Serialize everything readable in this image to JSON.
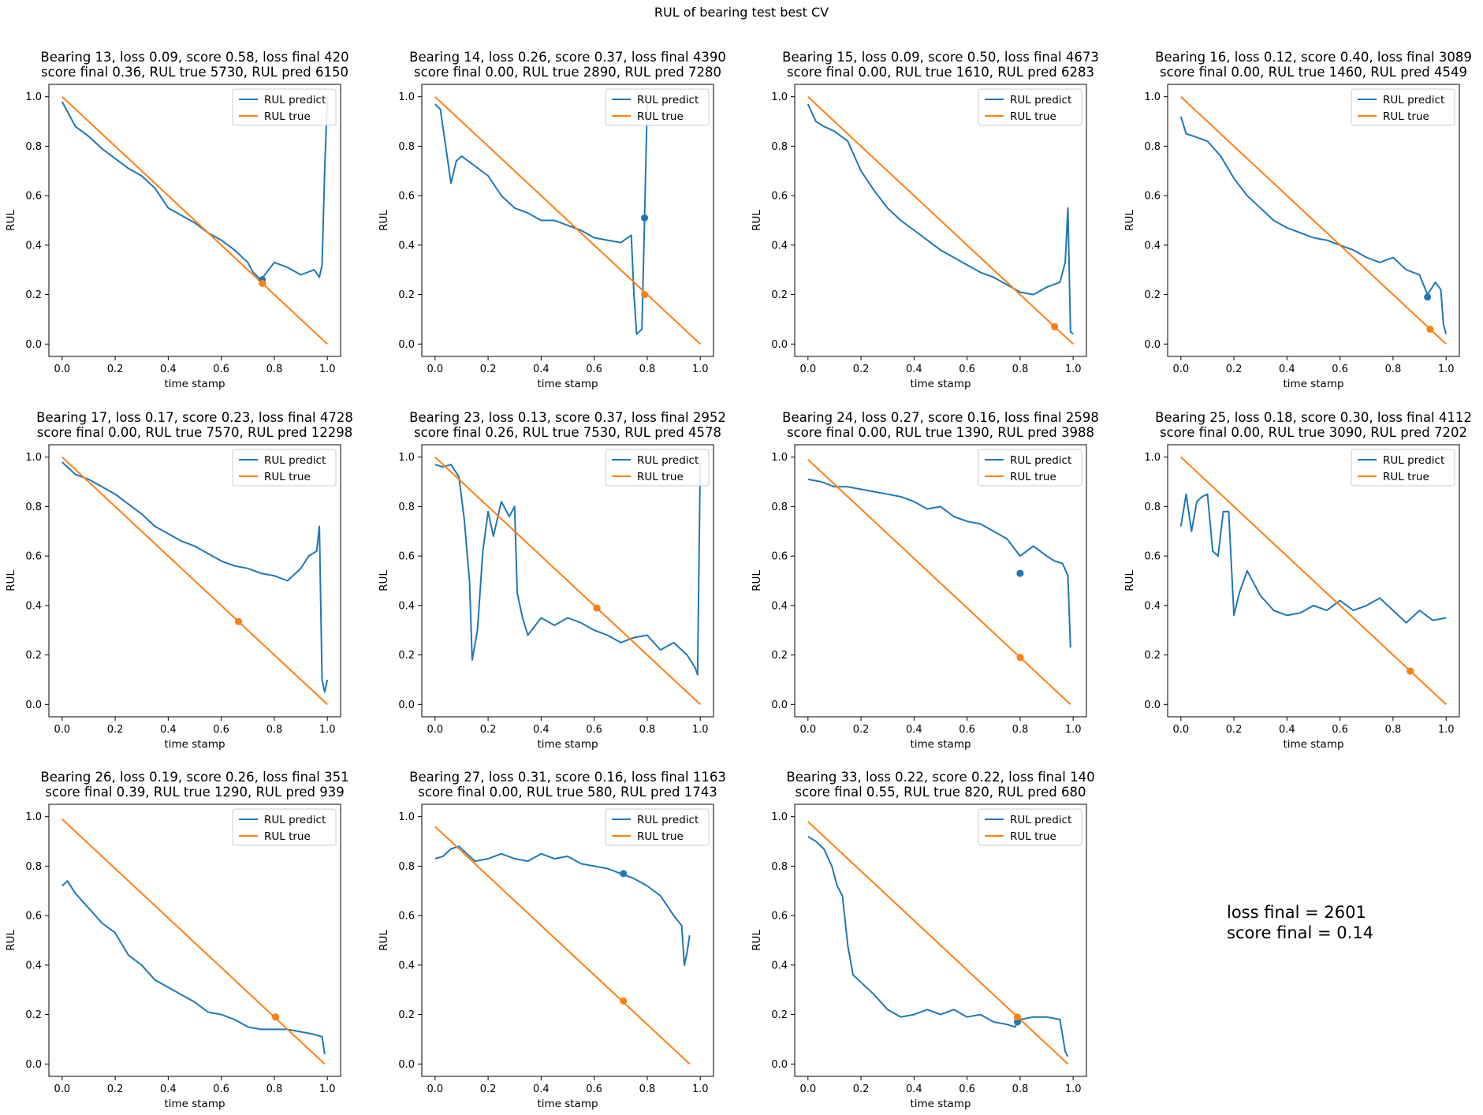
{
  "figure_title": "RUL of bearing test best CV",
  "summary": {
    "loss_final": "loss final = 2601",
    "score_final": "score final = 0.14"
  },
  "colors": {
    "predict": "#1f77b4",
    "true": "#ff7f0e"
  },
  "chart_data": [
    {
      "type": "line",
      "title_line1": "Bearing 13, loss 0.09, score 0.58, loss final 420",
      "title_line2": "score final 0.36, RUL true 5730, RUL pred 6150",
      "xlabel": "time stamp",
      "ylabel": "RUL",
      "xlim": [
        -0.05,
        1.05
      ],
      "ylim": [
        -0.05,
        1.05
      ],
      "legend": "top-right",
      "series": [
        {
          "name": "RUL predict",
          "x": [
            0,
            0.05,
            0.1,
            0.15,
            0.2,
            0.25,
            0.3,
            0.35,
            0.4,
            0.45,
            0.5,
            0.55,
            0.6,
            0.65,
            0.7,
            0.72,
            0.75,
            0.8,
            0.85,
            0.9,
            0.95,
            0.97,
            0.98,
            0.99,
            1.0
          ],
          "y": [
            0.98,
            0.88,
            0.84,
            0.79,
            0.75,
            0.71,
            0.68,
            0.63,
            0.55,
            0.52,
            0.49,
            0.45,
            0.42,
            0.38,
            0.33,
            0.29,
            0.26,
            0.33,
            0.31,
            0.28,
            0.3,
            0.27,
            0.32,
            0.7,
            1.0
          ]
        },
        {
          "name": "RUL true",
          "x": [
            0,
            1
          ],
          "y": [
            1.0,
            0.0
          ]
        }
      ],
      "markers": {
        "predict": [
          0.755,
          0.26
        ],
        "true": [
          0.755,
          0.245
        ]
      }
    },
    {
      "type": "line",
      "title_line1": "Bearing 14, loss 0.26, score 0.37, loss final 4390",
      "title_line2": "score final 0.00, RUL true 2890, RUL pred 7280",
      "xlabel": "time stamp",
      "ylabel": "RUL",
      "xlim": [
        -0.05,
        1.05
      ],
      "ylim": [
        -0.05,
        1.05
      ],
      "legend": "top-right",
      "series": [
        {
          "name": "RUL predict",
          "x": [
            0,
            0.02,
            0.04,
            0.06,
            0.08,
            0.1,
            0.15,
            0.2,
            0.25,
            0.3,
            0.35,
            0.4,
            0.45,
            0.5,
            0.55,
            0.6,
            0.65,
            0.7,
            0.74,
            0.75,
            0.76,
            0.78,
            0.79,
            0.8
          ],
          "y": [
            0.97,
            0.95,
            0.8,
            0.65,
            0.74,
            0.76,
            0.72,
            0.68,
            0.6,
            0.55,
            0.53,
            0.5,
            0.5,
            0.48,
            0.46,
            0.43,
            0.42,
            0.41,
            0.44,
            0.2,
            0.04,
            0.06,
            0.5,
            0.97
          ]
        },
        {
          "name": "RUL true",
          "x": [
            0,
            1
          ],
          "y": [
            1.0,
            0.0
          ]
        }
      ],
      "markers": {
        "predict": [
          0.79,
          0.51
        ],
        "true": [
          0.79,
          0.2
        ]
      }
    },
    {
      "type": "line",
      "title_line1": "Bearing 15, loss 0.09, score 0.50, loss final 4673",
      "title_line2": "score final 0.00, RUL true 1610, RUL pred 6283",
      "xlabel": "time stamp",
      "ylabel": "RUL",
      "xlim": [
        -0.05,
        1.05
      ],
      "ylim": [
        -0.05,
        1.05
      ],
      "legend": "top-right",
      "series": [
        {
          "name": "RUL predict",
          "x": [
            0,
            0.03,
            0.06,
            0.1,
            0.15,
            0.2,
            0.25,
            0.3,
            0.35,
            0.4,
            0.45,
            0.5,
            0.55,
            0.6,
            0.65,
            0.7,
            0.75,
            0.8,
            0.85,
            0.9,
            0.95,
            0.97,
            0.98,
            0.99,
            1.0
          ],
          "y": [
            0.97,
            0.9,
            0.88,
            0.86,
            0.82,
            0.7,
            0.62,
            0.55,
            0.5,
            0.46,
            0.42,
            0.38,
            0.35,
            0.32,
            0.29,
            0.27,
            0.24,
            0.21,
            0.2,
            0.23,
            0.25,
            0.33,
            0.55,
            0.05,
            0.04
          ]
        },
        {
          "name": "RUL true",
          "x": [
            0,
            1
          ],
          "y": [
            1.0,
            0.0
          ]
        }
      ],
      "markers": {
        "predict": [
          0.93,
          0.07
        ],
        "true": [
          0.93,
          0.07
        ]
      }
    },
    {
      "type": "line",
      "title_line1": "Bearing 16, loss 0.12, score 0.40, loss final 3089",
      "title_line2": "score final 0.00, RUL true 1460, RUL pred 4549",
      "xlabel": "time stamp",
      "ylabel": "RUL",
      "xlim": [
        -0.05,
        1.05
      ],
      "ylim": [
        -0.05,
        1.05
      ],
      "legend": "top-right",
      "series": [
        {
          "name": "RUL predict",
          "x": [
            0,
            0.02,
            0.05,
            0.1,
            0.15,
            0.2,
            0.25,
            0.3,
            0.35,
            0.4,
            0.45,
            0.5,
            0.55,
            0.6,
            0.65,
            0.7,
            0.75,
            0.8,
            0.85,
            0.9,
            0.93,
            0.96,
            0.98,
            0.99,
            1.0
          ],
          "y": [
            0.92,
            0.85,
            0.84,
            0.82,
            0.76,
            0.67,
            0.6,
            0.55,
            0.5,
            0.47,
            0.45,
            0.43,
            0.42,
            0.4,
            0.38,
            0.35,
            0.33,
            0.35,
            0.3,
            0.28,
            0.2,
            0.25,
            0.22,
            0.08,
            0.04
          ]
        },
        {
          "name": "RUL true",
          "x": [
            0,
            1
          ],
          "y": [
            1.0,
            0.0
          ]
        }
      ],
      "markers": {
        "predict": [
          0.93,
          0.19
        ],
        "true": [
          0.94,
          0.06
        ]
      }
    },
    {
      "type": "line",
      "title_line1": "Bearing 17, loss 0.17, score 0.23, loss final 4728",
      "title_line2": "score final 0.00, RUL true 7570, RUL pred 12298",
      "xlabel": "time stamp",
      "ylabel": "RUL",
      "xlim": [
        -0.05,
        1.05
      ],
      "ylim": [
        -0.05,
        1.05
      ],
      "legend": "top-right",
      "series": [
        {
          "name": "RUL predict",
          "x": [
            0,
            0.05,
            0.1,
            0.15,
            0.2,
            0.25,
            0.3,
            0.35,
            0.4,
            0.45,
            0.5,
            0.55,
            0.6,
            0.65,
            0.7,
            0.75,
            0.8,
            0.85,
            0.9,
            0.93,
            0.96,
            0.97,
            0.98,
            0.99,
            1.0
          ],
          "y": [
            0.98,
            0.93,
            0.91,
            0.88,
            0.85,
            0.81,
            0.77,
            0.72,
            0.69,
            0.66,
            0.64,
            0.61,
            0.58,
            0.56,
            0.55,
            0.53,
            0.52,
            0.5,
            0.55,
            0.6,
            0.62,
            0.72,
            0.1,
            0.05,
            0.1
          ]
        },
        {
          "name": "RUL true",
          "x": [
            0,
            1
          ],
          "y": [
            1.0,
            0.0
          ]
        }
      ],
      "markers": {
        "predict": [
          0.665,
          0.335
        ],
        "true": [
          0.665,
          0.335
        ]
      }
    },
    {
      "type": "line",
      "title_line1": "Bearing 23, loss 0.13, score 0.37, loss final 2952",
      "title_line2": "score final 0.26, RUL true 7530, RUL pred 4578",
      "xlabel": "time stamp",
      "ylabel": "RUL",
      "xlim": [
        -0.05,
        1.05
      ],
      "ylim": [
        -0.05,
        1.05
      ],
      "legend": "top-right",
      "series": [
        {
          "name": "RUL predict",
          "x": [
            0,
            0.03,
            0.06,
            0.09,
            0.11,
            0.13,
            0.14,
            0.16,
            0.18,
            0.2,
            0.22,
            0.25,
            0.28,
            0.3,
            0.31,
            0.33,
            0.35,
            0.4,
            0.45,
            0.5,
            0.55,
            0.6,
            0.65,
            0.7,
            0.75,
            0.8,
            0.85,
            0.9,
            0.95,
            0.98,
            0.99,
            1.0
          ],
          "y": [
            0.97,
            0.96,
            0.97,
            0.92,
            0.75,
            0.5,
            0.18,
            0.3,
            0.62,
            0.78,
            0.68,
            0.82,
            0.76,
            0.8,
            0.45,
            0.35,
            0.28,
            0.35,
            0.32,
            0.35,
            0.33,
            0.3,
            0.28,
            0.25,
            0.27,
            0.28,
            0.22,
            0.25,
            0.2,
            0.15,
            0.12,
            0.98
          ]
        },
        {
          "name": "RUL true",
          "x": [
            0,
            1
          ],
          "y": [
            1.0,
            0.0
          ]
        }
      ],
      "markers": {
        "predict": [
          0.61,
          0.39
        ],
        "true": [
          0.61,
          0.39
        ]
      }
    },
    {
      "type": "line",
      "title_line1": "Bearing 24, loss 0.27, score 0.16, loss final 2598",
      "title_line2": "score final 0.00, RUL true 1390, RUL pred 3988",
      "xlabel": "time stamp",
      "ylabel": "RUL",
      "xlim": [
        -0.05,
        1.05
      ],
      "ylim": [
        -0.05,
        1.05
      ],
      "legend": "top-right",
      "series": [
        {
          "name": "RUL predict",
          "x": [
            0,
            0.05,
            0.1,
            0.15,
            0.2,
            0.25,
            0.3,
            0.35,
            0.4,
            0.45,
            0.5,
            0.55,
            0.6,
            0.65,
            0.7,
            0.75,
            0.8,
            0.85,
            0.9,
            0.93,
            0.96,
            0.98,
            0.99
          ],
          "y": [
            0.91,
            0.9,
            0.88,
            0.88,
            0.87,
            0.86,
            0.85,
            0.84,
            0.82,
            0.79,
            0.8,
            0.76,
            0.74,
            0.73,
            0.7,
            0.67,
            0.6,
            0.64,
            0.6,
            0.58,
            0.57,
            0.52,
            0.23
          ]
        },
        {
          "name": "RUL true",
          "x": [
            0,
            0.99
          ],
          "y": [
            0.99,
            0.0
          ]
        }
      ],
      "markers": {
        "predict": [
          0.8,
          0.53
        ],
        "true": [
          0.8,
          0.19
        ]
      }
    },
    {
      "type": "line",
      "title_line1": "Bearing 25, loss 0.18, score 0.30, loss final 4112",
      "title_line2": "score final 0.00, RUL true 3090, RUL pred 7202",
      "xlabel": "time stamp",
      "ylabel": "RUL",
      "xlim": [
        -0.05,
        1.05
      ],
      "ylim": [
        -0.05,
        1.05
      ],
      "legend": "top-right",
      "series": [
        {
          "name": "RUL predict",
          "x": [
            0,
            0.02,
            0.04,
            0.06,
            0.08,
            0.1,
            0.12,
            0.14,
            0.16,
            0.18,
            0.2,
            0.22,
            0.25,
            0.3,
            0.35,
            0.4,
            0.45,
            0.5,
            0.55,
            0.6,
            0.65,
            0.7,
            0.75,
            0.8,
            0.85,
            0.9,
            0.95,
            1.0
          ],
          "y": [
            0.72,
            0.85,
            0.7,
            0.82,
            0.84,
            0.85,
            0.62,
            0.6,
            0.78,
            0.78,
            0.36,
            0.45,
            0.54,
            0.44,
            0.38,
            0.36,
            0.37,
            0.4,
            0.38,
            0.42,
            0.38,
            0.4,
            0.43,
            0.38,
            0.33,
            0.38,
            0.34,
            0.35
          ]
        },
        {
          "name": "RUL true",
          "x": [
            0,
            1
          ],
          "y": [
            1.0,
            0.0
          ]
        }
      ],
      "markers": {
        "predict": [
          0.865,
          0.135
        ],
        "true": [
          0.865,
          0.135
        ]
      }
    },
    {
      "type": "line",
      "title_line1": "Bearing 26, loss 0.19, score 0.26, loss final 351",
      "title_line2": "score final 0.39, RUL true 1290, RUL pred 939",
      "xlabel": "time stamp",
      "ylabel": "RUL",
      "xlim": [
        -0.05,
        1.05
      ],
      "ylim": [
        -0.05,
        1.05
      ],
      "legend": "top-right",
      "series": [
        {
          "name": "RUL predict",
          "x": [
            0,
            0.02,
            0.05,
            0.1,
            0.15,
            0.2,
            0.25,
            0.3,
            0.35,
            0.4,
            0.45,
            0.5,
            0.55,
            0.6,
            0.65,
            0.7,
            0.75,
            0.8,
            0.85,
            0.9,
            0.95,
            0.98,
            0.99
          ],
          "y": [
            0.72,
            0.74,
            0.69,
            0.63,
            0.57,
            0.53,
            0.44,
            0.4,
            0.34,
            0.31,
            0.28,
            0.25,
            0.21,
            0.2,
            0.18,
            0.15,
            0.14,
            0.14,
            0.14,
            0.13,
            0.12,
            0.11,
            0.04
          ]
        },
        {
          "name": "RUL true",
          "x": [
            0,
            0.99
          ],
          "y": [
            0.99,
            0.0
          ]
        }
      ],
      "markers": {
        "predict": [
          0.805,
          0.19
        ],
        "true": [
          0.805,
          0.19
        ]
      }
    },
    {
      "type": "line",
      "title_line1": "Bearing 27, loss 0.31, score 0.16, loss final 1163",
      "title_line2": "score final 0.00, RUL true 580, RUL pred 1743",
      "xlabel": "time stamp",
      "ylabel": "RUL",
      "xlim": [
        -0.05,
        1.05
      ],
      "ylim": [
        -0.05,
        1.05
      ],
      "legend": "top-right",
      "series": [
        {
          "name": "RUL predict",
          "x": [
            0,
            0.03,
            0.06,
            0.09,
            0.12,
            0.15,
            0.2,
            0.25,
            0.3,
            0.35,
            0.4,
            0.45,
            0.5,
            0.55,
            0.6,
            0.65,
            0.7,
            0.75,
            0.8,
            0.85,
            0.9,
            0.93,
            0.94,
            0.95,
            0.96
          ],
          "y": [
            0.83,
            0.84,
            0.87,
            0.88,
            0.85,
            0.82,
            0.83,
            0.85,
            0.83,
            0.82,
            0.85,
            0.83,
            0.84,
            0.81,
            0.8,
            0.79,
            0.77,
            0.75,
            0.72,
            0.68,
            0.6,
            0.56,
            0.4,
            0.45,
            0.52
          ]
        },
        {
          "name": "RUL true",
          "x": [
            0,
            0.96
          ],
          "y": [
            0.96,
            0.0
          ]
        }
      ],
      "markers": {
        "predict": [
          0.71,
          0.77
        ],
        "true": [
          0.71,
          0.255
        ]
      }
    },
    {
      "type": "line",
      "title_line1": "Bearing 33, loss 0.22, score 0.22, loss final 140",
      "title_line2": "score final 0.55, RUL true 820, RUL pred 680",
      "xlabel": "time stamp",
      "ylabel": "RUL",
      "xlim": [
        -0.05,
        1.05
      ],
      "ylim": [
        -0.05,
        1.05
      ],
      "legend": "top-right",
      "series": [
        {
          "name": "RUL predict",
          "x": [
            0,
            0.03,
            0.06,
            0.09,
            0.11,
            0.13,
            0.15,
            0.17,
            0.2,
            0.25,
            0.3,
            0.35,
            0.4,
            0.45,
            0.5,
            0.55,
            0.6,
            0.65,
            0.7,
            0.75,
            0.78,
            0.8,
            0.85,
            0.9,
            0.95,
            0.97,
            0.98
          ],
          "y": [
            0.92,
            0.9,
            0.87,
            0.8,
            0.72,
            0.68,
            0.48,
            0.36,
            0.33,
            0.28,
            0.22,
            0.19,
            0.2,
            0.22,
            0.2,
            0.22,
            0.19,
            0.2,
            0.17,
            0.16,
            0.15,
            0.18,
            0.19,
            0.19,
            0.18,
            0.05,
            0.03
          ]
        },
        {
          "name": "RUL true",
          "x": [
            0,
            0.98
          ],
          "y": [
            0.98,
            0.0
          ]
        }
      ],
      "markers": {
        "predict": [
          0.79,
          0.17
        ],
        "true": [
          0.79,
          0.19
        ]
      }
    }
  ]
}
